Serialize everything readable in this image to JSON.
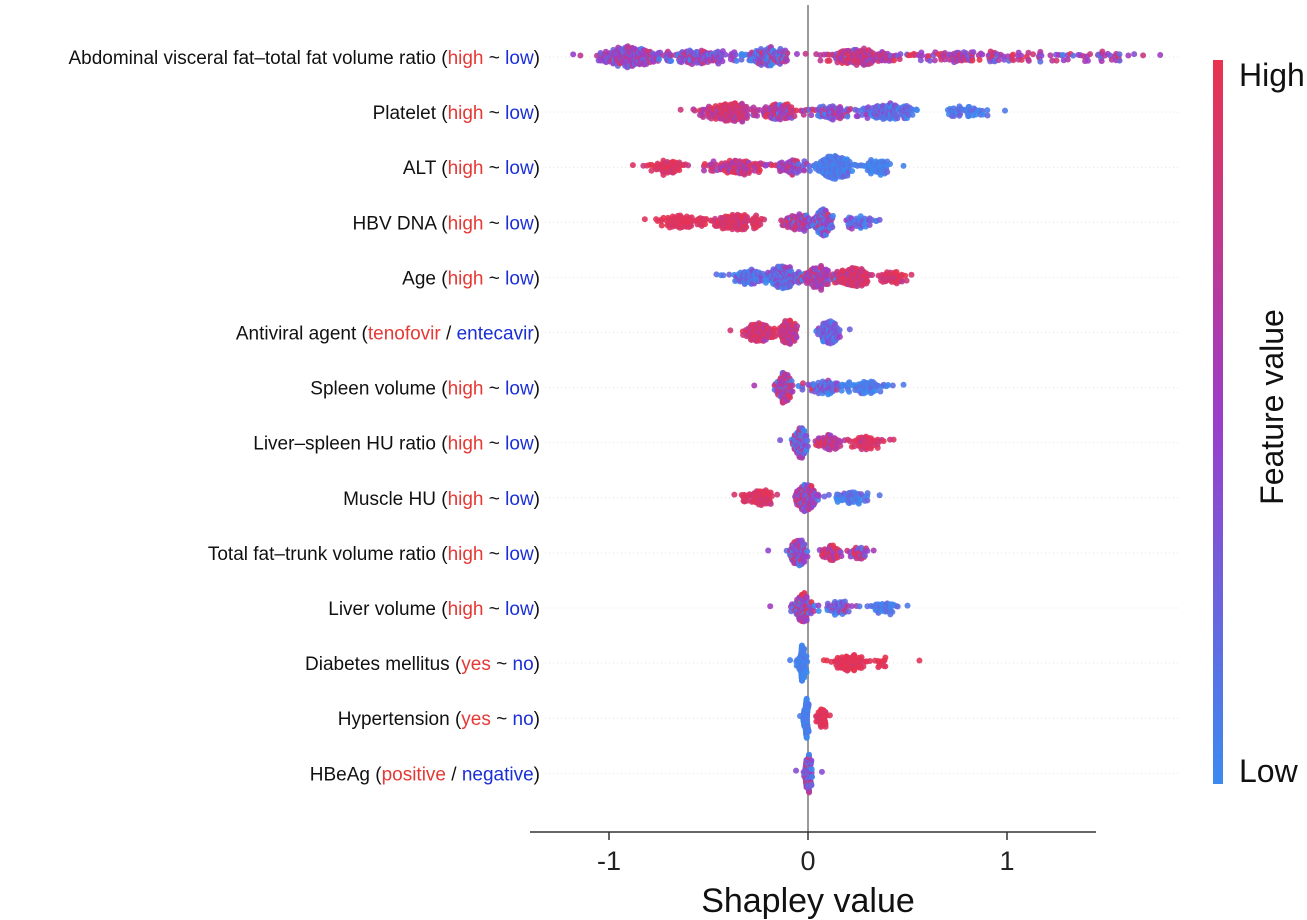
{
  "chart_data": {
    "type": "scatter",
    "subtype": "beeswarm",
    "xlabel": "Shapley value",
    "xlim": [
      -1.4,
      1.45
    ],
    "xticks": [
      -1,
      0,
      1
    ],
    "xtick_labels": [
      "-1",
      "0",
      "1"
    ],
    "colorbar": {
      "title": "Feature value",
      "high_label": "High",
      "low_label": "Low",
      "high_color": "#e8334e",
      "low_color": "#3b8af0"
    },
    "colors": {
      "high_word": "#e53935",
      "low_word": "#1a2fd6",
      "dot_high": "#e8334e",
      "dot_low": "#3b8af0",
      "dot_mid": "#9a3ecb"
    },
    "features": [
      {
        "name": "Abdominal visceral fat–total fat volume ratio",
        "hi": "high",
        "sep": "~",
        "lo": "low",
        "xmin": -1.18,
        "xmax": 1.77,
        "clusters": [
          {
            "c": -0.9,
            "w": 0.14,
            "n": 240,
            "cm": 0.5,
            "cs": 0.2
          },
          {
            "c": -0.55,
            "w": 0.2,
            "n": 130,
            "cm": 0.45,
            "cs": 0.22
          },
          {
            "c": -0.2,
            "w": 0.12,
            "n": 150,
            "cm": 0.3,
            "cs": 0.3
          },
          {
            "c": 0.25,
            "w": 0.18,
            "n": 170,
            "cm": 0.72,
            "cs": 0.2
          },
          {
            "c": 0.75,
            "w": 0.35,
            "n": 100,
            "cm": 0.65,
            "cs": 0.25
          },
          {
            "c": 1.35,
            "w": 0.3,
            "n": 50,
            "cm": 0.55,
            "cs": 0.25
          }
        ]
      },
      {
        "name": "Platelet",
        "hi": "high",
        "sep": "~",
        "lo": "low",
        "xmin": -0.64,
        "xmax": 0.99,
        "clusters": [
          {
            "c": -0.4,
            "w": 0.12,
            "n": 180,
            "cm": 0.82,
            "cs": 0.15
          },
          {
            "c": -0.15,
            "w": 0.1,
            "n": 110,
            "cm": 0.65,
            "cs": 0.25
          },
          {
            "c": 0.12,
            "w": 0.1,
            "n": 70,
            "cm": 0.45,
            "cs": 0.25
          },
          {
            "c": 0.4,
            "w": 0.14,
            "n": 130,
            "cm": 0.18,
            "cs": 0.15
          },
          {
            "c": 0.78,
            "w": 0.12,
            "n": 40,
            "cm": 0.1,
            "cs": 0.1
          }
        ]
      },
      {
        "name": "ALT",
        "hi": "high",
        "sep": "~",
        "lo": "low",
        "xmin": -0.88,
        "xmax": 0.48,
        "clusters": [
          {
            "c": -0.7,
            "w": 0.1,
            "n": 60,
            "cm": 0.92,
            "cs": 0.08
          },
          {
            "c": -0.35,
            "w": 0.16,
            "n": 110,
            "cm": 0.78,
            "cs": 0.2
          },
          {
            "c": -0.08,
            "w": 0.08,
            "n": 60,
            "cm": 0.5,
            "cs": 0.25
          },
          {
            "c": 0.13,
            "w": 0.08,
            "n": 220,
            "cm": 0.08,
            "cs": 0.1
          },
          {
            "c": 0.35,
            "w": 0.08,
            "n": 60,
            "cm": 0.05,
            "cs": 0.06
          }
        ]
      },
      {
        "name": "HBV DNA",
        "hi": "high",
        "sep": "~",
        "lo": "low",
        "xmin": -0.82,
        "xmax": 0.36,
        "clusters": [
          {
            "c": -0.62,
            "w": 0.14,
            "n": 80,
            "cm": 0.95,
            "cs": 0.05
          },
          {
            "c": -0.35,
            "w": 0.12,
            "n": 120,
            "cm": 0.9,
            "cs": 0.1
          },
          {
            "c": -0.05,
            "w": 0.08,
            "n": 80,
            "cm": 0.6,
            "cs": 0.25
          },
          {
            "c": 0.07,
            "w": 0.05,
            "n": 160,
            "cm": 0.35,
            "cs": 0.3
          },
          {
            "c": 0.25,
            "w": 0.07,
            "n": 40,
            "cm": 0.3,
            "cs": 0.25
          }
        ]
      },
      {
        "name": "Age",
        "hi": "high",
        "sep": "~",
        "lo": "low",
        "xmin": -0.46,
        "xmax": 0.52,
        "clusters": [
          {
            "c": -0.3,
            "w": 0.1,
            "n": 80,
            "cm": 0.2,
            "cs": 0.15
          },
          {
            "c": -0.13,
            "w": 0.07,
            "n": 180,
            "cm": 0.25,
            "cs": 0.2
          },
          {
            "c": 0.05,
            "w": 0.07,
            "n": 150,
            "cm": 0.6,
            "cs": 0.25
          },
          {
            "c": 0.22,
            "w": 0.08,
            "n": 140,
            "cm": 0.85,
            "cs": 0.12
          },
          {
            "c": 0.42,
            "w": 0.08,
            "n": 40,
            "cm": 0.9,
            "cs": 0.1
          }
        ]
      },
      {
        "name": "Antiviral agent",
        "hi": "tenofovir",
        "sep": "/",
        "lo": "entecavir",
        "xmin": -0.39,
        "xmax": 0.21,
        "clusters": [
          {
            "c": -0.24,
            "w": 0.08,
            "n": 120,
            "cm": 0.85,
            "cs": 0.12
          },
          {
            "c": -0.1,
            "w": 0.04,
            "n": 130,
            "cm": 0.8,
            "cs": 0.15
          },
          {
            "c": 0.1,
            "w": 0.05,
            "n": 140,
            "cm": 0.25,
            "cs": 0.2
          }
        ]
      },
      {
        "name": "Spleen volume",
        "hi": "high",
        "sep": "~",
        "lo": "low",
        "xmin": -0.27,
        "xmax": 0.48,
        "clusters": [
          {
            "c": -0.12,
            "w": 0.04,
            "n": 180,
            "cm": 0.6,
            "cs": 0.25
          },
          {
            "c": 0.08,
            "w": 0.1,
            "n": 60,
            "cm": 0.3,
            "cs": 0.25
          },
          {
            "c": 0.3,
            "w": 0.12,
            "n": 60,
            "cm": 0.1,
            "cs": 0.08
          }
        ]
      },
      {
        "name": "Liver–spleen HU ratio",
        "hi": "high",
        "sep": "~",
        "lo": "low",
        "xmin": -0.14,
        "xmax": 0.43,
        "clusters": [
          {
            "c": -0.04,
            "w": 0.03,
            "n": 160,
            "cm": 0.35,
            "cs": 0.3
          },
          {
            "c": 0.1,
            "w": 0.06,
            "n": 60,
            "cm": 0.75,
            "cs": 0.2
          },
          {
            "c": 0.28,
            "w": 0.08,
            "n": 50,
            "cm": 0.9,
            "cs": 0.08
          }
        ]
      },
      {
        "name": "Muscle HU",
        "hi": "high",
        "sep": "~",
        "lo": "low",
        "xmin": -0.37,
        "xmax": 0.36,
        "clusters": [
          {
            "c": -0.25,
            "w": 0.08,
            "n": 70,
            "cm": 0.9,
            "cs": 0.08
          },
          {
            "c": -0.01,
            "w": 0.05,
            "n": 190,
            "cm": 0.6,
            "cs": 0.3
          },
          {
            "c": 0.2,
            "w": 0.08,
            "n": 50,
            "cm": 0.15,
            "cs": 0.12
          }
        ]
      },
      {
        "name": "Total fat–trunk volume ratio",
        "hi": "high",
        "sep": "~",
        "lo": "low",
        "xmin": -0.2,
        "xmax": 0.33,
        "clusters": [
          {
            "c": -0.05,
            "w": 0.04,
            "n": 150,
            "cm": 0.45,
            "cs": 0.3
          },
          {
            "c": 0.12,
            "w": 0.06,
            "n": 50,
            "cm": 0.7,
            "cs": 0.25
          },
          {
            "c": 0.25,
            "w": 0.06,
            "n": 30,
            "cm": 0.6,
            "cs": 0.3
          }
        ]
      },
      {
        "name": "Liver volume",
        "hi": "high",
        "sep": "~",
        "lo": "low",
        "xmin": -0.19,
        "xmax": 0.5,
        "clusters": [
          {
            "c": -0.03,
            "w": 0.04,
            "n": 170,
            "cm": 0.55,
            "cs": 0.3
          },
          {
            "c": 0.15,
            "w": 0.08,
            "n": 50,
            "cm": 0.3,
            "cs": 0.25
          },
          {
            "c": 0.38,
            "w": 0.08,
            "n": 40,
            "cm": 0.1,
            "cs": 0.08
          }
        ]
      },
      {
        "name": "Diabetes mellitus",
        "hi": "yes",
        "sep": "~",
        "lo": "no",
        "xmin": -0.09,
        "xmax": 0.56,
        "clusters": [
          {
            "c": -0.03,
            "w": 0.02,
            "n": 130,
            "cm": 0.06,
            "cs": 0.05
          },
          {
            "c": 0.2,
            "w": 0.1,
            "n": 90,
            "cm": 0.96,
            "cs": 0.04
          },
          {
            "c": 0.38,
            "w": 0.03,
            "n": 10,
            "cm": 0.96,
            "cs": 0.04
          }
        ]
      },
      {
        "name": "Hypertension",
        "hi": "yes",
        "sep": "~",
        "lo": "no",
        "xmin": -0.04,
        "xmax": 0.11,
        "clusters": [
          {
            "c": -0.01,
            "w": 0.012,
            "n": 130,
            "cm": 0.08,
            "cs": 0.06
          },
          {
            "c": 0.07,
            "w": 0.025,
            "n": 50,
            "cm": 0.95,
            "cs": 0.05
          }
        ]
      },
      {
        "name": "HBeAg",
        "hi": "positive",
        "sep": "/",
        "lo": "negative",
        "xmin": -0.06,
        "xmax": 0.07,
        "clusters": [
          {
            "c": 0.0,
            "w": 0.018,
            "n": 150,
            "cm": 0.4,
            "cs": 0.4
          }
        ]
      }
    ]
  }
}
